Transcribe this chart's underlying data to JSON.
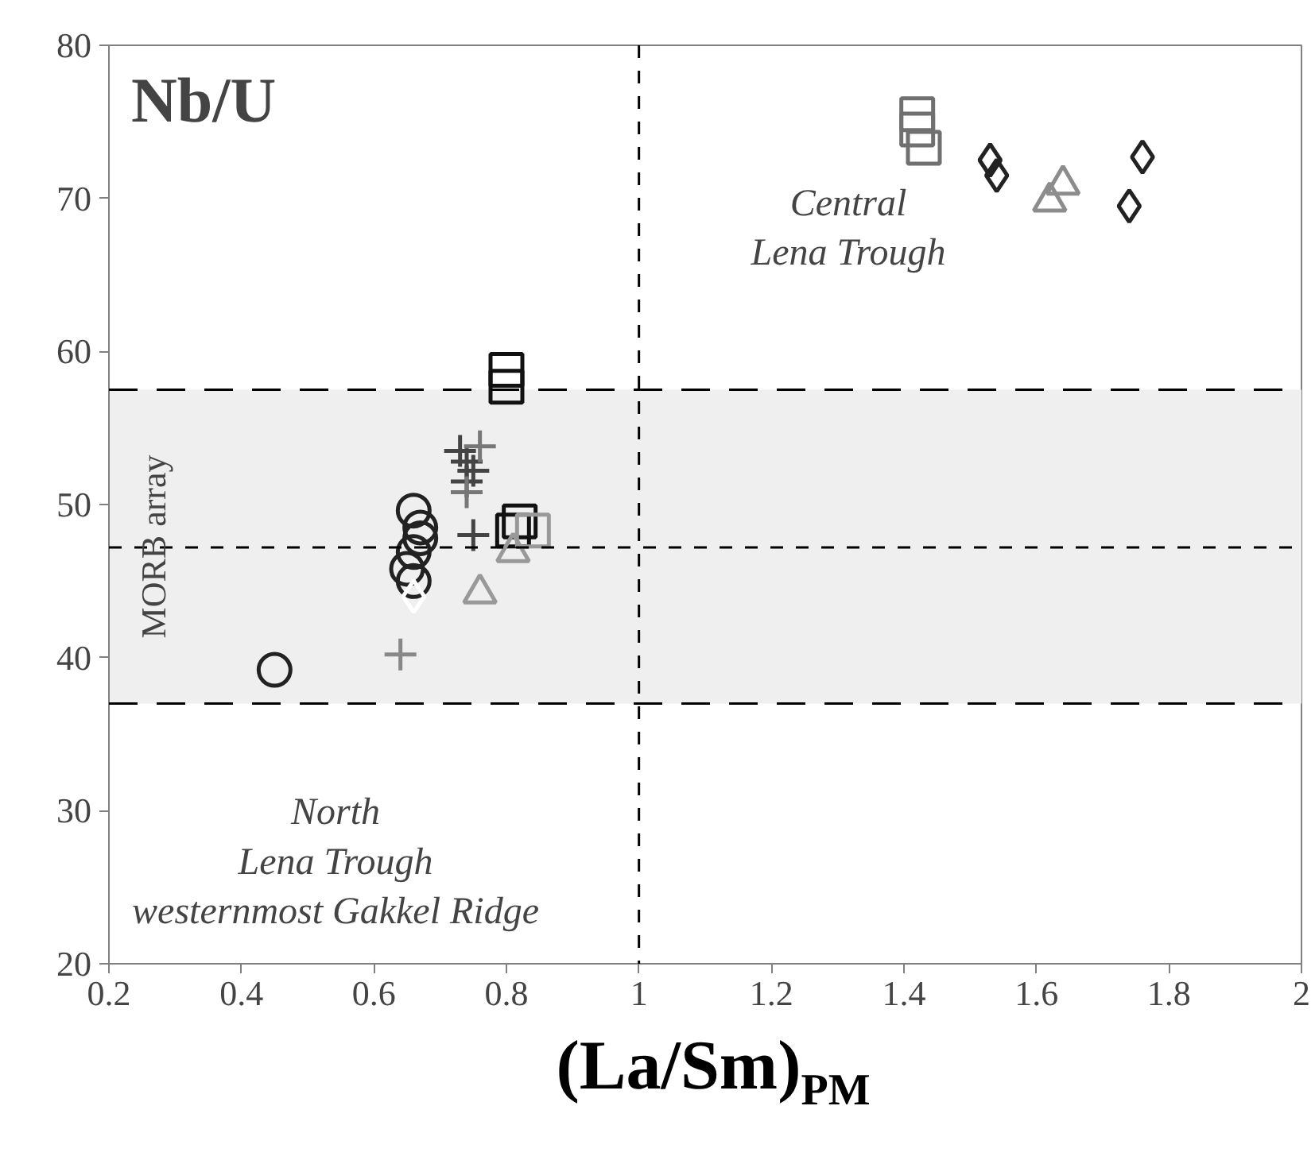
{
  "chart_data": {
    "type": "scatter",
    "title": "Nb/U",
    "xlabel": "(La/Sm)$_{PM}$",
    "xlim": [
      0.2,
      2
    ],
    "ylim": [
      20,
      80
    ],
    "xticks": [
      0.2,
      0.4,
      0.6,
      0.8,
      1,
      1.2,
      1.4,
      1.6,
      1.8,
      2
    ],
    "yticks": [
      20,
      30,
      40,
      50,
      60,
      70,
      80
    ],
    "grid": false,
    "series": [
      {
        "marker": "circle",
        "color": "#222222",
        "x": [
          0.45,
          0.66,
          0.67,
          0.66,
          0.65,
          0.66,
          0.67
        ],
        "values": [
          39.2,
          49.6,
          48.5,
          46.9,
          45.8,
          45.0,
          47.8
        ]
      },
      {
        "marker": "diamond",
        "color": "#ffffff",
        "x": [
          0.66
        ],
        "values": [
          44.0
        ]
      },
      {
        "marker": "cross",
        "color": "#888888",
        "x": [
          0.64
        ],
        "values": [
          40.2
        ]
      },
      {
        "marker": "cross",
        "color": "#444444",
        "x": [
          0.74,
          0.73,
          0.75,
          0.74,
          0.75
        ],
        "values": [
          52.8,
          53.5,
          52.2,
          51.5,
          48.0
        ]
      },
      {
        "marker": "cross",
        "color": "#777777",
        "x": [
          0.76,
          0.74
        ],
        "values": [
          53.8,
          50.8
        ]
      },
      {
        "marker": "square",
        "color": "#111111",
        "x": [
          0.82,
          0.81
        ],
        "values": [
          48.9,
          48.3
        ]
      },
      {
        "marker": "square",
        "color": "#999999",
        "x": [
          0.84
        ],
        "values": [
          48.3
        ]
      },
      {
        "marker": "triangle",
        "color": "#999999",
        "x": [
          0.81,
          0.76
        ],
        "values": [
          46.9,
          44.2
        ]
      },
      {
        "marker": "square",
        "color": "#111111",
        "x": [
          0.8,
          0.8
        ],
        "values": [
          58.8,
          57.7
        ]
      },
      {
        "marker": "square",
        "color": "#707070",
        "x": [
          1.42,
          1.43,
          1.42
        ],
        "values": [
          75.5,
          73.3,
          74.5
        ]
      },
      {
        "marker": "diamond",
        "color": "#222222",
        "x": [
          1.53,
          1.54,
          1.76,
          1.74
        ],
        "values": [
          72.5,
          71.5,
          72.7,
          69.5
        ]
      },
      {
        "marker": "triangle",
        "color": "#8c8c8c",
        "x": [
          1.64,
          1.62
        ],
        "values": [
          70.9,
          69.8
        ]
      }
    ],
    "ref_lines": [
      {
        "axis": "y",
        "value": 57.5,
        "line_style": "dashed",
        "color": "#000000"
      },
      {
        "axis": "y",
        "value": 47.2,
        "line_style": "dotted",
        "color": "#000000"
      },
      {
        "axis": "y",
        "value": 37,
        "line_style": "dashed",
        "color": "#000000"
      },
      {
        "axis": "x",
        "value": 1,
        "line_style": "dotted",
        "color": "#000000"
      }
    ],
    "bands": [
      {
        "axis": "y",
        "from": 37,
        "to": 57.5,
        "label": "MORB array",
        "color": "#efefef"
      }
    ],
    "annotations": [
      "Central\nLena Trough",
      "North\nLena Trough\nwesternmost Gakkel Ridge"
    ]
  }
}
